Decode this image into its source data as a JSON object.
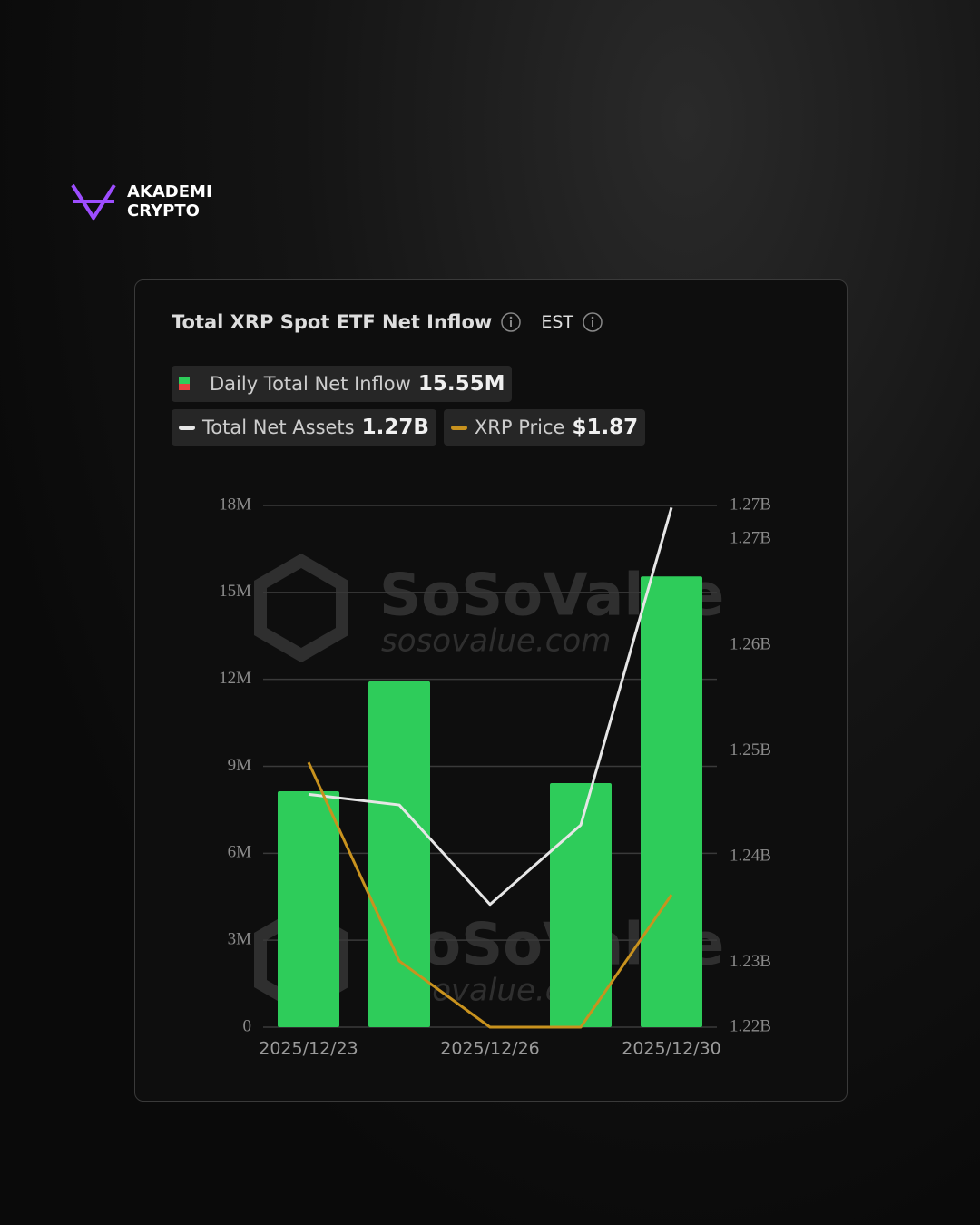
{
  "brand": {
    "line1": "AKADEMI",
    "line2": "CRYPTO"
  },
  "chart_data": {
    "type": "bar",
    "title": "Total XRP Spot ETF Net Inflow",
    "timezone": "EST",
    "watermark": {
      "name": "SoSoValue",
      "url": "sosovalue.com"
    },
    "categories": [
      "2025/12/23",
      null,
      "2025/12/26",
      null,
      "2025/12/30"
    ],
    "series": [
      {
        "name": "Daily Total Net Inflow",
        "type": "bar",
        "color": "#2ecc5a",
        "legend_value": "15.55M",
        "values": [
          8140000,
          11930000,
          0,
          8420000,
          15550000
        ]
      },
      {
        "name": "Total Net Assets",
        "type": "line",
        "axis": "y2",
        "color": "#e6e6e6",
        "legend_value": "1.27B",
        "values": [
          1245900000,
          1244900000,
          1235500000,
          1243000000,
          1273000000
        ]
      },
      {
        "name": "XRP Price",
        "type": "line",
        "axis": "y3",
        "color": "#c8921e",
        "legend_value": "$1.87",
        "values": [
          1.89,
          1.86,
          1.85,
          1.85,
          1.87
        ]
      }
    ],
    "ylim": [
      0,
      18000000
    ],
    "yticks": [
      0,
      {
        "value": 3000000,
        "label": "3M"
      },
      {
        "value": 6000000,
        "label": "6M"
      },
      {
        "value": 9000000,
        "label": "9M"
      },
      {
        "value": 12000000,
        "label": "12M"
      },
      {
        "value": 15000000,
        "label": "15M"
      },
      {
        "value": 18000000,
        "label": "18M"
      }
    ],
    "y2lim": [
      1223900000,
      1273200000
    ],
    "y2ticks": [
      {
        "value": 1223900000,
        "label": "1.22B"
      },
      {
        "value": 1230000000,
        "label": "1.23B"
      },
      {
        "value": 1240000000,
        "label": "1.24B"
      },
      {
        "value": 1250000000,
        "label": "1.25B"
      },
      {
        "value": 1260000000,
        "label": "1.26B"
      },
      {
        "value": 1270000000,
        "label": "1.27B"
      },
      {
        "value": 1273200000,
        "label": "1.27B"
      }
    ],
    "y3lim": [
      1.85,
      1.9288
    ],
    "grid": true
  }
}
